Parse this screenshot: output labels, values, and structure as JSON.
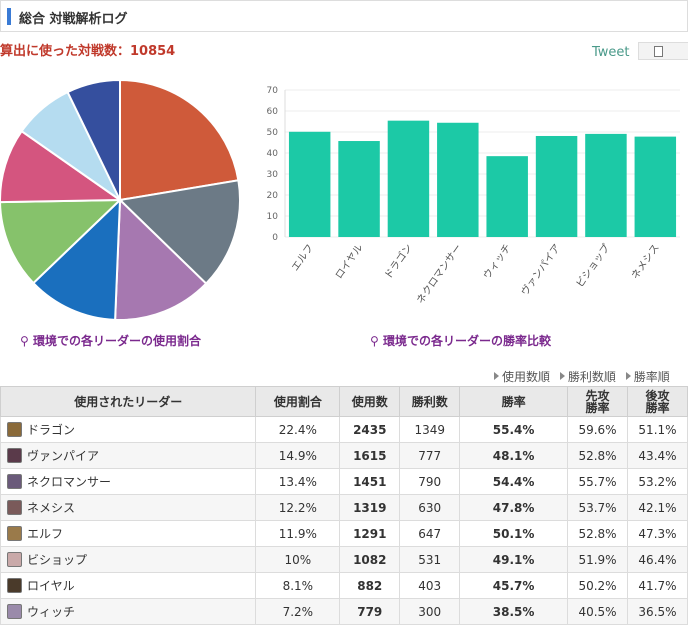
{
  "header": {
    "title": "総合 対戦解析ログ"
  },
  "total_label": "算出に使った対戦数：10854",
  "tweet_label": "Tweet",
  "captions": {
    "pie": "環境での各リーダーの使用割合",
    "bar": "環境での各リーダーの勝率比較"
  },
  "sort_links": [
    "使用数順",
    "勝利数順",
    "勝率順"
  ],
  "table": {
    "headers": [
      "使用されたリーダー",
      "使用割合",
      "使用数",
      "勝利数",
      "勝率",
      "先攻勝率",
      "後攻勝率"
    ],
    "rows": [
      {
        "leader": "ドラゴン",
        "share": "22.4%",
        "uses": "2435",
        "wins": "1349",
        "rate": "55.4%",
        "first": "59.6%",
        "second": "51.1%",
        "highlight": true,
        "avatar": "#8a6a3a"
      },
      {
        "leader": "ヴァンパイア",
        "share": "14.9%",
        "uses": "1615",
        "wins": "777",
        "rate": "48.1%",
        "first": "52.8%",
        "second": "43.4%",
        "highlight": false,
        "avatar": "#5a3a4a"
      },
      {
        "leader": "ネクロマンサー",
        "share": "13.4%",
        "uses": "1451",
        "wins": "790",
        "rate": "54.4%",
        "first": "55.7%",
        "second": "53.2%",
        "highlight": true,
        "avatar": "#6a5a7a"
      },
      {
        "leader": "ネメシス",
        "share": "12.2%",
        "uses": "1319",
        "wins": "630",
        "rate": "47.8%",
        "first": "53.7%",
        "second": "42.1%",
        "highlight": false,
        "avatar": "#7a5a5a"
      },
      {
        "leader": "エルフ",
        "share": "11.9%",
        "uses": "1291",
        "wins": "647",
        "rate": "50.1%",
        "first": "52.8%",
        "second": "47.3%",
        "highlight": true,
        "avatar": "#9a7a4a"
      },
      {
        "leader": "ビショップ",
        "share": "10%",
        "uses": "1082",
        "wins": "531",
        "rate": "49.1%",
        "first": "51.9%",
        "second": "46.4%",
        "highlight": false,
        "avatar": "#c9a9a9"
      },
      {
        "leader": "ロイヤル",
        "share": "8.1%",
        "uses": "882",
        "wins": "403",
        "rate": "45.7%",
        "first": "50.2%",
        "second": "41.7%",
        "highlight": false,
        "avatar": "#4a3a2a"
      },
      {
        "leader": "ウィッチ",
        "share": "7.2%",
        "uses": "779",
        "wins": "300",
        "rate": "38.5%",
        "first": "40.5%",
        "second": "36.5%",
        "highlight": false,
        "avatar": "#9a8aaa"
      }
    ]
  },
  "chart_data": [
    {
      "type": "pie",
      "slices": [
        {
          "label": "ドラゴン",
          "value": 22.4,
          "color": "#cf5a3a"
        },
        {
          "label": "ヴァンパイア",
          "value": 14.9,
          "color": "#6c7a86"
        },
        {
          "label": "ネクロマンサー",
          "value": 13.4,
          "color": "#a678b0"
        },
        {
          "label": "ネメシス",
          "value": 12.2,
          "color": "#1a6fbe"
        },
        {
          "label": "エルフ",
          "value": 11.9,
          "color": "#86c26b"
        },
        {
          "label": "ビショップ",
          "value": 10.0,
          "color": "#d4557f"
        },
        {
          "label": "ロイヤル",
          "value": 8.1,
          "color": "#b5dcf0"
        },
        {
          "label": "ウィッチ",
          "value": 7.2,
          "color": "#354f9e"
        }
      ]
    },
    {
      "type": "bar",
      "categories": [
        "エルフ",
        "ロイヤル",
        "ドラゴン",
        "ネクロマンサー",
        "ウィッチ",
        "ヴァンパイア",
        "ビショップ",
        "ネメシス"
      ],
      "values": [
        50.1,
        45.7,
        55.4,
        54.4,
        38.5,
        48.1,
        49.1,
        47.8
      ],
      "color": "#1cc9a6",
      "ylim": [
        0,
        70
      ],
      "yticks": [
        "0",
        "10",
        "20",
        "30",
        "40",
        "50",
        "60",
        "70"
      ],
      "grid": true
    }
  ]
}
